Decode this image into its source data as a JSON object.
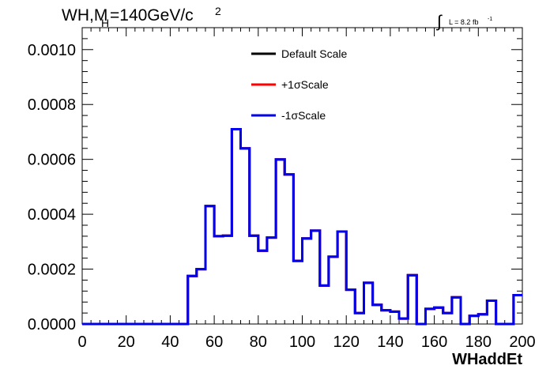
{
  "chart_data": {
    "type": "line",
    "title_main": "WH,M",
    "title_sub": "H",
    "title_rest": "=140GeV/c",
    "title_sup": "2",
    "lumi_sign": "∫",
    "lumi_text": "L = 8.2 fb",
    "lumi_sup": "-1",
    "xlabel": "WHaddEt",
    "ylabel": "",
    "xlim": [
      0,
      200
    ],
    "ylim": [
      0,
      0.00108
    ],
    "x_ticks": [
      "0",
      "20",
      "40",
      "60",
      "80",
      "100",
      "120",
      "140",
      "160",
      "180",
      "200"
    ],
    "y_ticks": [
      "0.0000",
      "0.0002",
      "0.0004",
      "0.0006",
      "0.0008",
      "0.0010"
    ],
    "legend_position": "top-center",
    "bin_edges": [
      0,
      4,
      8,
      12,
      16,
      20,
      24,
      28,
      32,
      36,
      40,
      44,
      48,
      52,
      56,
      60,
      64,
      68,
      72,
      76,
      80,
      84,
      88,
      92,
      96,
      100,
      104,
      108,
      112,
      116,
      120,
      124,
      128,
      132,
      136,
      140,
      144,
      148,
      152,
      156,
      160,
      164,
      168,
      172,
      176,
      180,
      184,
      188,
      192,
      196,
      200
    ],
    "series": [
      {
        "name": "Default Scale",
        "color": "#000000",
        "values": [
          0,
          0,
          0,
          0,
          0,
          0,
          0,
          0,
          0,
          0,
          0,
          0,
          0.000175,
          0.0002,
          0.00043,
          0.00032,
          0.000322,
          0.00071,
          0.00064,
          0.000322,
          0.000267,
          0.000315,
          0.0006,
          0.000545,
          0.00023,
          0.000312,
          0.00034,
          0.00014,
          0.000245,
          0.000337,
          0.000125,
          4e-05,
          0.00015,
          7e-05,
          5e-05,
          4.5e-05,
          2e-05,
          0.000178,
          0.0,
          5.5e-05,
          6e-05,
          4e-05,
          9.7e-05,
          0.0,
          3e-05,
          3.5e-05,
          8.5e-05,
          0.0,
          0.0,
          0.000105
        ]
      },
      {
        "name": "+1σScale",
        "color": "#ff0000",
        "values": [
          0,
          0,
          0,
          0,
          0,
          0,
          0,
          0,
          0,
          0,
          0,
          0,
          0.000175,
          0.0002,
          0.00043,
          0.00032,
          0.000322,
          0.00071,
          0.00064,
          0.000322,
          0.000267,
          0.000315,
          0.0006,
          0.000545,
          0.00023,
          0.000312,
          0.00034,
          0.00014,
          0.000245,
          0.000337,
          0.000125,
          4e-05,
          0.00015,
          7e-05,
          5e-05,
          4.5e-05,
          2e-05,
          0.000178,
          0.0,
          5.5e-05,
          6e-05,
          4e-05,
          9.7e-05,
          0.0,
          3e-05,
          3.5e-05,
          8.5e-05,
          0.0,
          0.0,
          0.000105
        ]
      },
      {
        "name": "-1σScale",
        "color": "#0000ee",
        "values": [
          0,
          0,
          0,
          0,
          0,
          0,
          0,
          0,
          0,
          0,
          0,
          0,
          0.000175,
          0.0002,
          0.00043,
          0.00032,
          0.000322,
          0.00071,
          0.00064,
          0.000322,
          0.000267,
          0.000315,
          0.0006,
          0.000545,
          0.00023,
          0.000312,
          0.00034,
          0.00014,
          0.000245,
          0.000337,
          0.000125,
          4e-05,
          0.00015,
          7e-05,
          5e-05,
          4.5e-05,
          2e-05,
          0.000178,
          0.0,
          5.5e-05,
          6e-05,
          4e-05,
          9.7e-05,
          0.0,
          3e-05,
          3.5e-05,
          8.5e-05,
          0.0,
          0.0,
          0.000105
        ]
      }
    ]
  }
}
